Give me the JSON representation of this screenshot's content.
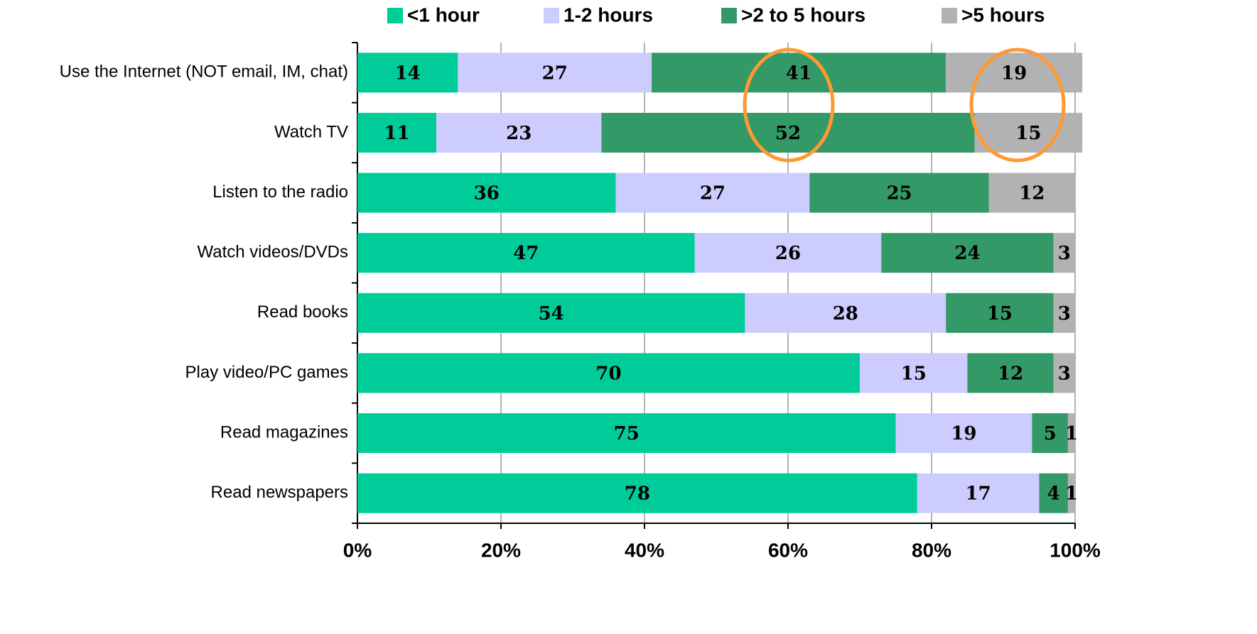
{
  "chart_data": {
    "type": "bar",
    "orientation": "horizontal",
    "stacked": true,
    "categories": [
      "Use the Internet (NOT email, IM, chat)",
      "Watch TV",
      "Listen to the radio",
      "Watch videos/DVDs",
      "Read books",
      "Play video/PC games",
      "Read magazines",
      "Read newspapers"
    ],
    "series": [
      {
        "name": "<1 hour",
        "color": "#00cc99",
        "values": [
          14,
          11,
          36,
          47,
          54,
          70,
          75,
          78
        ]
      },
      {
        "name": "1-2 hours",
        "color": "#ccccff",
        "values": [
          27,
          23,
          27,
          26,
          28,
          15,
          19,
          17
        ]
      },
      {
        "name": ">2 to 5 hours",
        "color": "#339966",
        "values": [
          41,
          52,
          25,
          24,
          15,
          12,
          5,
          4
        ]
      },
      {
        "name": ">5 hours",
        "color": "#b2b2b2",
        "values": [
          19,
          15,
          12,
          3,
          3,
          3,
          1,
          1
        ]
      }
    ],
    "xlim": [
      0,
      100
    ],
    "xticks": [
      {
        "value": 0,
        "label": "0%"
      },
      {
        "value": 20,
        "label": "20%"
      },
      {
        "value": 40,
        "label": "40%"
      },
      {
        "value": 60,
        "label": "60%"
      },
      {
        "value": 80,
        "label": "80%"
      },
      {
        "value": 100,
        "label": "100%"
      }
    ],
    "grid": true,
    "legend": "top"
  }
}
